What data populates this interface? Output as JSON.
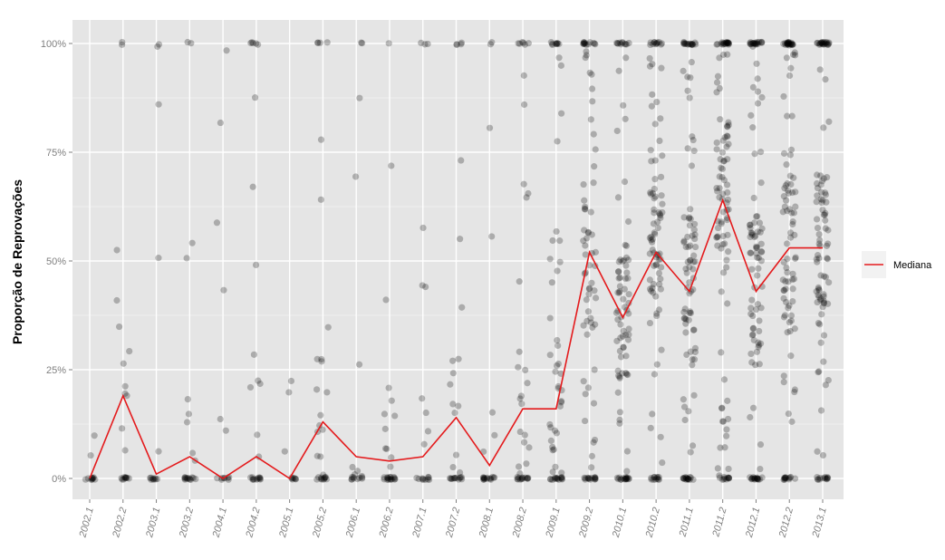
{
  "chart_data": {
    "type": "scatter",
    "title": "",
    "xlabel": "",
    "ylabel": "Proporção de Reprovações",
    "categories": [
      "2002.1",
      "2002.2",
      "2003.1",
      "2003.2",
      "2004.1",
      "2004.2",
      "2005.1",
      "2005.2",
      "2006.1",
      "2006.2",
      "2007.1",
      "2007.2",
      "2008.1",
      "2008.2",
      "2009.1",
      "2009.2",
      "2010.1",
      "2010.2",
      "2011.1",
      "2011.2",
      "2012.1",
      "2012.2",
      "2013.1"
    ],
    "y_ticks": [
      "0%",
      "25%",
      "50%",
      "75%",
      "100%"
    ],
    "ylim": [
      0,
      1
    ],
    "grid": true,
    "legend_position": "right",
    "series": [
      {
        "name": "Mediana",
        "type": "line",
        "color": "#e41a1c",
        "values": [
          0.0,
          0.19,
          0.01,
          0.05,
          0.0,
          0.05,
          0.0,
          0.13,
          0.05,
          0.04,
          0.05,
          0.14,
          0.03,
          0.16,
          0.16,
          0.52,
          0.37,
          0.52,
          0.43,
          0.64,
          0.43,
          0.53,
          0.53
        ]
      },
      {
        "name": "",
        "type": "jitter-points",
        "color": "#000000",
        "opacity": 0.25,
        "count_per_category": [
          12,
          22,
          14,
          22,
          14,
          26,
          10,
          30,
          18,
          28,
          20,
          30,
          22,
          40,
          60,
          85,
          95,
          100,
          105,
          110,
          110,
          110,
          110
        ],
        "share_zero": [
          0.5,
          0.45,
          0.55,
          0.4,
          0.6,
          0.35,
          0.65,
          0.3,
          0.45,
          0.4,
          0.45,
          0.35,
          0.5,
          0.3,
          0.25,
          0.18,
          0.18,
          0.12,
          0.15,
          0.1,
          0.15,
          0.12,
          0.12
        ],
        "share_hundred": [
          0.0,
          0.1,
          0.05,
          0.1,
          0.0,
          0.2,
          0.0,
          0.12,
          0.12,
          0.05,
          0.15,
          0.12,
          0.1,
          0.15,
          0.15,
          0.15,
          0.12,
          0.12,
          0.15,
          0.18,
          0.18,
          0.2,
          0.2
        ]
      }
    ]
  }
}
